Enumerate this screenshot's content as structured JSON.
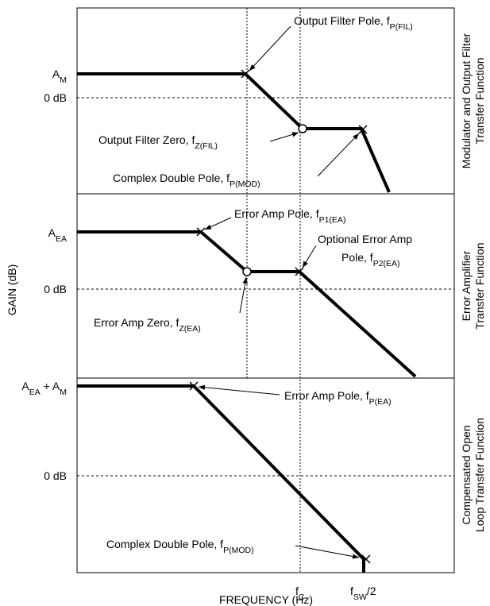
{
  "axes": {
    "y_label": "GAIN (dB)",
    "x_label": "FREQUENCY (Hz)",
    "fc": {
      "base": "f",
      "sub": "C"
    },
    "fsw": {
      "base": "f",
      "sub": "SW",
      "tail": "/2"
    }
  },
  "panels": [
    {
      "title": [
        "Modulator and Output Filter",
        "Transfer Function"
      ],
      "gain": {
        "base": "A",
        "sub": "M"
      },
      "zero_db": "0 dB",
      "annotations": [
        {
          "base": "Output Filter Pole, f",
          "sub": "P(FIL)"
        },
        {
          "base": "Output Filter Zero, f",
          "sub": "Z(FIL)"
        },
        {
          "base": "Complex Double Pole, f",
          "sub": "P(MOD)"
        }
      ]
    },
    {
      "title": [
        "Error Amplifier",
        "Transfer Function"
      ],
      "gain": {
        "base": "A",
        "sub": "EA"
      },
      "zero_db": "0 dB",
      "annotations": [
        {
          "base": "Error Amp Pole, f",
          "sub": "P1(EA)"
        },
        {
          "line1": "Optional Error Amp",
          "base": "Pole, f",
          "sub": "P2(EA)"
        },
        {
          "base": "Error Amp Zero, f",
          "sub": "Z(EA)"
        }
      ]
    },
    {
      "title": [
        "Compensated Open",
        "Loop Transfer Function"
      ],
      "gain": {
        "base": "A",
        "sub": "EA",
        "mid": " + A",
        "sub2": "M"
      },
      "zero_db": "0 dB",
      "annotations": [
        {
          "base": "Error Amp Pole, f",
          "sub": "P(EA)"
        },
        {
          "base": "Complex Double Pole, f",
          "sub": "P(MOD)"
        }
      ]
    }
  ]
}
